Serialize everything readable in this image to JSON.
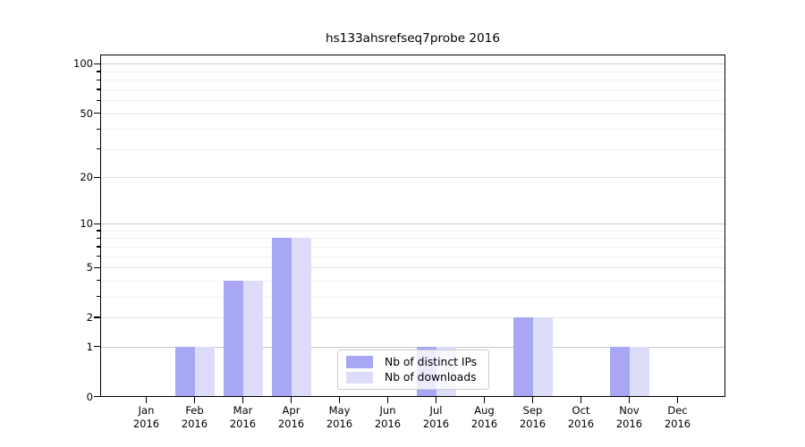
{
  "chart_data": {
    "type": "bar",
    "title": "hs133ahsrefseq7probe 2016",
    "categories": [
      "Jan 2016",
      "Feb 2016",
      "Mar 2016",
      "Apr 2016",
      "May 2016",
      "Jun 2016",
      "Jul 2016",
      "Aug 2016",
      "Sep 2016",
      "Oct 2016",
      "Nov 2016",
      "Dec 2016"
    ],
    "series": [
      {
        "name": "Nb of distinct IPs",
        "color": "#a7a7f5",
        "values": [
          0,
          1,
          4,
          8,
          0,
          0,
          1,
          0,
          2,
          0,
          1,
          0
        ]
      },
      {
        "name": "Nb of downloads",
        "color": "#dcdcf8",
        "values": [
          0,
          1,
          4,
          8,
          0,
          0,
          1,
          0,
          2,
          0,
          1,
          0
        ]
      }
    ],
    "xlabel": "",
    "ylabel": "",
    "yscale": "log10(1+y)",
    "yticks": [
      0,
      1,
      2,
      5,
      10,
      20,
      50,
      100
    ],
    "yticks_decade": [
      1,
      10,
      100
    ],
    "yticks_minor": [
      3,
      4,
      6,
      7,
      8,
      9,
      30,
      40,
      60,
      70,
      80,
      90
    ],
    "ylim": [
      0,
      113
    ],
    "grid": "horizontal",
    "legend_position": "inside lower-center",
    "colors": {
      "grid_decade": "#c9c9c9",
      "grid_major": "#e3e3e3",
      "grid_minor": "#f1f1f1",
      "axis": "#000000",
      "legend_border": "#cccccc"
    }
  }
}
